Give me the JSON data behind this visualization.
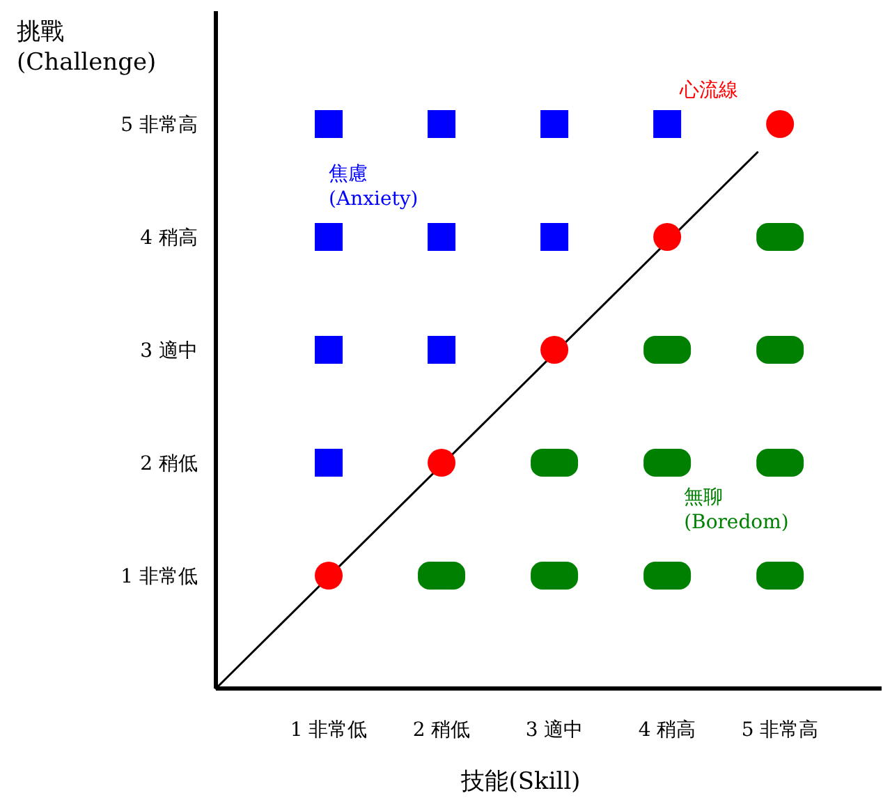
{
  "chart_data": {
    "type": "scatter",
    "xlabel": "技能(Skill)",
    "ylabel": "挑戰\n(Challenge)",
    "xlim": [
      0,
      5.9
    ],
    "ylim": [
      0,
      6
    ],
    "xticks": [
      {
        "value": 1,
        "label": "1 非常低"
      },
      {
        "value": 2,
        "label": "2 稍低"
      },
      {
        "value": 3,
        "label": "3 適中"
      },
      {
        "value": 4,
        "label": "4 稍高"
      },
      {
        "value": 5,
        "label": "5 非常高"
      }
    ],
    "yticks": [
      {
        "value": 1,
        "label": "1 非常低"
      },
      {
        "value": 2,
        "label": "2 稍低"
      },
      {
        "value": 3,
        "label": "3 適中"
      },
      {
        "value": 4,
        "label": "4 稍高"
      },
      {
        "value": 5,
        "label": "5 非常高"
      }
    ],
    "series": [
      {
        "type": "line",
        "color": "#000000",
        "x": [
          0,
          4.8
        ],
        "values": [
          0,
          4.75
        ]
      },
      {
        "name": "焦慮\n(Anxiety)",
        "marker": "square",
        "color": "#0000ff",
        "x": [
          1,
          2,
          3,
          4,
          1,
          2,
          3,
          1,
          2,
          1
        ],
        "values": [
          5,
          5,
          5,
          5,
          4,
          4,
          4,
          3,
          3,
          2
        ]
      },
      {
        "name": "心流線",
        "marker": "circle",
        "color": "#ff0000",
        "x": [
          1,
          2,
          3,
          4,
          5
        ],
        "values": [
          1,
          2,
          3,
          4,
          5
        ]
      },
      {
        "name": "無聊\n(Boredom)",
        "marker": "square",
        "color": "#008000",
        "x": [
          2,
          3,
          4,
          5,
          3,
          4,
          5,
          4,
          5,
          5
        ],
        "values": [
          1,
          1,
          1,
          1,
          2,
          2,
          2,
          3,
          3,
          4
        ]
      }
    ]
  }
}
